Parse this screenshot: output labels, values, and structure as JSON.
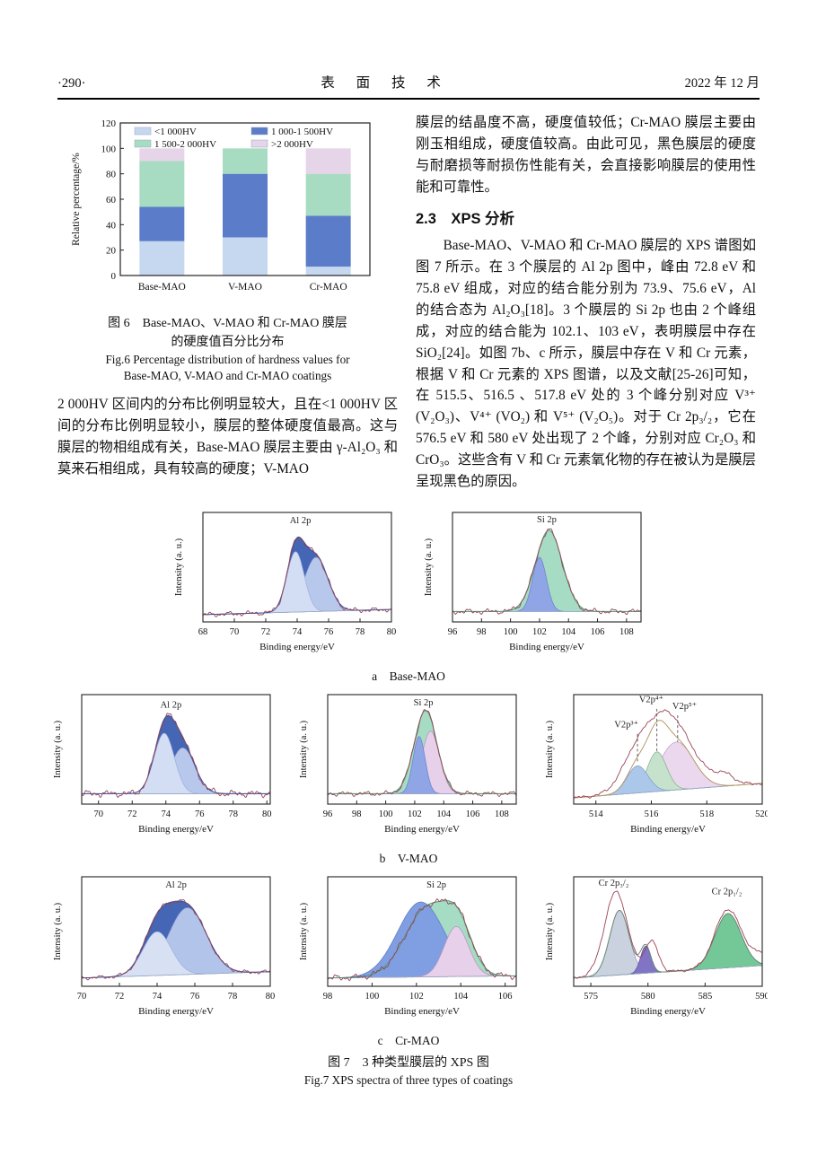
{
  "header": {
    "page_number": "·290·",
    "journal": "表 面 技 术",
    "date": "2022 年 12 月"
  },
  "left_column": {
    "paragraph": "2 000HV 区间内的分布比例明显较大，且在<1 000HV 区间的分布比例明显较小，膜层的整体硬度值最高。这与膜层的物相组成有关，Base-MAO 膜层主要由 γ-Al₂O₃ 和莫来石相组成，具有较高的硬度；V-MAO"
  },
  "right_column": {
    "paragraph1": "膜层的结晶度不高，硬度值较低；Cr-MAO 膜层主要由刚玉相组成，硬度值较高。由此可见，黑色膜层的硬度与耐磨损等耐损伤性能有关，会直接影响膜层的使用性能和可靠性。",
    "heading": "2.3　XPS 分析",
    "paragraph2": "Base-MAO、V-MAO 和 Cr-MAO 膜层的 XPS 谱图如图 7 所示。在 3 个膜层的 Al 2p 图中，峰由 72.8 eV 和 75.8 eV 组成，对应的结合能分别为 73.9、75.6 eV，Al 的结合态为 Al₂O₃[18]。3 个膜层的 Si 2p 也由 2 个峰组成，对应的结合能为 102.1、103 eV，表明膜层中存在 SiO₂[24]。如图 7b、c 所示，膜层中存在 V 和 Cr 元素，根据 V 和 Cr 元素的 XPS 图谱，以及文献[25-26]可知，在 515.5、516.5 、517.8 eV 处的 3 个峰分别对应 V³⁺ (V₂O₃)、V⁴⁺ (VO₂) 和 V⁵⁺ (V₂O₅)。对于 Cr 2p₃/₂，它在 576.5 eV 和 580 eV 处出现了 2 个峰，分别对应 Cr₂O₃ 和 CrO₃。这些含有 V 和 Cr 元素氧化物的存在被认为是膜层呈现黑色的原因。"
  },
  "figure6": {
    "caption_zh1": "图 6　Base-MAO、V-MAO 和 Cr-MAO 膜层",
    "caption_zh2": "的硬度值百分比分布",
    "caption_en1": "Fig.6 Percentage distribution of hardness values for",
    "caption_en2": "Base-MAO, V-MAO and Cr-MAO coatings"
  },
  "figure7": {
    "group_a": "a　Base-MAO",
    "group_b": "b　V-MAO",
    "group_c": "c　Cr-MAO",
    "caption_zh": "图 7　3 种类型膜层的 XPS 图",
    "caption_en": "Fig.7 XPS spectra of three types of coatings"
  },
  "chart_data": {
    "bar_chart": {
      "type": "bar",
      "stacked": true,
      "ylabel": "Relative percentage/%",
      "ylim": [
        0,
        120
      ],
      "yticks": [
        0,
        20,
        40,
        60,
        80,
        100,
        120
      ],
      "categories": [
        "Base-MAO",
        "V-MAO",
        "Cr-MAO"
      ],
      "series": [
        {
          "name": "<1 000HV",
          "color": "#c6d8f0",
          "values": [
            27,
            30,
            7
          ]
        },
        {
          "name": "1 000-1 500HV",
          "color": "#5b7cc8",
          "values": [
            27,
            50,
            40
          ]
        },
        {
          "name": "1 500-2 000HV",
          "color": "#a8dcc2",
          "values": [
            36,
            20,
            33
          ]
        },
        {
          "name": ">2 000HV",
          "color": "#e6d4e8",
          "values": [
            10,
            0,
            20
          ]
        }
      ],
      "legend_position": "top-inside"
    },
    "spectra": [
      {
        "id": "a-al2p",
        "group": "Base-MAO",
        "type": "line",
        "x_label": "Binding energy/eV",
        "y_label": "Intensity (a. u.)",
        "x_range": [
          68,
          80
        ],
        "ticks": [
          68,
          70,
          72,
          74,
          76,
          78,
          80
        ],
        "baseline": [
          0.07,
          0.12
        ],
        "noise": 0.02,
        "envelope_fill": "#4466b4",
        "envelope_stroke": "#31519e",
        "raw_color": "#9a4455",
        "envelope_peaks": [
          {
            "c": 73.9,
            "s": 0.55,
            "a": 0.58
          },
          {
            "c": 75.2,
            "s": 0.75,
            "a": 0.52
          }
        ],
        "components": [
          {
            "c": 75.2,
            "s": 0.75,
            "a": 0.52,
            "color": "#b7c8ec",
            "line": "#8a9cd0"
          },
          {
            "c": 73.9,
            "s": 0.55,
            "a": 0.58,
            "color": "#d3def4",
            "line": "#9dafdd"
          }
        ],
        "annotations": [
          {
            "text": "Al 2p",
            "x": 74.2,
            "ty": 0.1
          }
        ]
      },
      {
        "id": "a-si2p",
        "group": "Base-MAO",
        "type": "line",
        "x_label": "Binding energy/eV",
        "y_label": "Intensity (a. u.)",
        "x_range": [
          96,
          109
        ],
        "ticks": [
          96,
          98,
          100,
          102,
          104,
          106,
          108
        ],
        "baseline": [
          0.1,
          0.1
        ],
        "noise": 0.022,
        "envelope_fill": "#a5dcc3",
        "envelope_stroke": "#4a9a74",
        "raw_color": "#9a4455",
        "envelope_peaks": [
          {
            "c": 102.65,
            "s": 0.92,
            "a": 0.78
          }
        ],
        "components": [
          {
            "c": 102.0,
            "s": 0.48,
            "a": 0.52,
            "color": "#8fa5e5",
            "line": "#6a7fc9"
          }
        ],
        "annotations": [
          {
            "text": "Si 2p",
            "x": 102.5,
            "ty": 0.09
          }
        ]
      },
      {
        "id": "b-al2p",
        "group": "V-MAO",
        "type": "line",
        "x_label": "Binding energy/eV",
        "y_label": "Intensity (a. u.)",
        "x_range": [
          69,
          80.2
        ],
        "ticks": [
          70,
          72,
          74,
          76,
          78,
          80
        ],
        "baseline": [
          0.1,
          0.1
        ],
        "noise": 0.028,
        "envelope_fill": "#4466b4",
        "envelope_stroke": "#31519e",
        "raw_color": "#9a4455",
        "envelope_peaks": [
          {
            "c": 73.9,
            "s": 0.6,
            "a": 0.58
          },
          {
            "c": 75.0,
            "s": 0.72,
            "a": 0.44
          }
        ],
        "components": [
          {
            "c": 75.0,
            "s": 0.72,
            "a": 0.44,
            "color": "#b7c8ec",
            "line": "#8a9cd0"
          },
          {
            "c": 73.9,
            "s": 0.6,
            "a": 0.58,
            "color": "#d3def4",
            "line": "#9dafdd"
          }
        ],
        "annotations": [
          {
            "text": "Al 2p",
            "x": 74.3,
            "ty": 0.12
          }
        ]
      },
      {
        "id": "b-si2p",
        "group": "V-MAO",
        "type": "line",
        "x_label": "Binding energy/eV",
        "y_label": "Intensity (a. u.)",
        "x_range": [
          96,
          109
        ],
        "ticks": [
          96,
          98,
          100,
          102,
          104,
          106,
          108
        ],
        "baseline": [
          0.1,
          0.1
        ],
        "noise": 0.02,
        "envelope_fill": "#a5dcc3",
        "envelope_stroke": "#4a9a74",
        "raw_color": "#9a4455",
        "envelope_peaks": [
          {
            "c": 102.75,
            "s": 0.78,
            "a": 0.8
          }
        ],
        "components": [
          {
            "c": 103.1,
            "s": 0.62,
            "a": 0.6,
            "color": "#e6d0ea",
            "line": "#b893c0"
          },
          {
            "c": 102.3,
            "s": 0.42,
            "a": 0.55,
            "color": "#8fa5e5",
            "line": "#6a7fc9"
          }
        ],
        "annotations": [
          {
            "text": "Si 2p",
            "x": 102.6,
            "ty": 0.1
          }
        ]
      },
      {
        "id": "b-v2p",
        "group": "V-MAO",
        "type": "line",
        "x_label": "Binding energy/eV",
        "y_label": "Intensity (a. u.)",
        "x_range": [
          513.2,
          520
        ],
        "ticks": [
          514,
          516,
          518,
          520
        ],
        "baseline": [
          0.06,
          0.2
        ],
        "noise": 0.013,
        "envelope_fill": null,
        "envelope_stroke": "#b89a68",
        "raw_color": "#9a4455",
        "envelope_peaks": [
          {
            "c": 516.9,
            "s": 0.62,
            "a": 0.46
          },
          {
            "c": 516.2,
            "s": 0.35,
            "a": 0.38
          },
          {
            "c": 515.5,
            "s": 0.38,
            "a": 0.26
          }
        ],
        "components": [
          {
            "c": 516.9,
            "s": 0.62,
            "a": 0.46,
            "color": "#ecd8ee",
            "line": "#c09cc8"
          },
          {
            "c": 516.2,
            "s": 0.35,
            "a": 0.38,
            "color": "#c6e2cc",
            "line": "#7fae8a"
          },
          {
            "c": 515.5,
            "s": 0.38,
            "a": 0.26,
            "color": "#abc8ea",
            "line": "#7b9cc8"
          }
        ],
        "raw_peaks": [
          {
            "c": 516.35,
            "s": 0.75,
            "a": 0.58
          },
          {
            "c": 515.35,
            "s": 0.5,
            "a": 0.2
          },
          {
            "c": 517.1,
            "s": 0.8,
            "a": 0.24
          },
          {
            "c": 518.65,
            "s": 0.35,
            "a": 0.09
          }
        ],
        "peak_positions_eV": {
          "V3+": 515.5,
          "V4+": 516.5,
          "V5+": 517.8
        },
        "annotations": [
          {
            "text": "V2p³⁺",
            "x": 515.1,
            "ty": 0.3,
            "line": {
              "x": 515.5,
              "y1": 0.36,
              "y2": 0.62
            }
          },
          {
            "text": "V2p⁴⁺",
            "x": 516.0,
            "ty": 0.07,
            "line": {
              "x": 516.2,
              "y1": 0.13,
              "y2": 0.52
            }
          },
          {
            "text": "V2p⁵⁺",
            "x": 517.2,
            "ty": 0.13,
            "line": {
              "x": 516.95,
              "y1": 0.19,
              "y2": 0.43
            }
          }
        ]
      },
      {
        "id": "c-al2p",
        "group": "Cr-MAO",
        "type": "line",
        "x_label": "Binding energy/eV",
        "y_label": "Intensity (a. u.)",
        "x_range": [
          70,
          80
        ],
        "ticks": [
          70,
          72,
          74,
          76,
          78,
          80
        ],
        "baseline": [
          0.08,
          0.14
        ],
        "noise": 0.016,
        "envelope_fill": "#4466b4",
        "envelope_stroke": "#31519e",
        "raw_color": "#9a4455",
        "envelope_peaks": [
          {
            "c": 74.0,
            "s": 0.75,
            "a": 0.42
          },
          {
            "c": 75.6,
            "s": 1.0,
            "a": 0.64
          }
        ],
        "components": [
          {
            "c": 75.6,
            "s": 1.0,
            "a": 0.64,
            "color": "#b2c4ea",
            "line": "#8a9cd0"
          },
          {
            "c": 74.0,
            "s": 0.75,
            "a": 0.42,
            "color": "#d8e1f4",
            "line": "#9dafdd"
          }
        ],
        "annotations": [
          {
            "text": "Al 2p",
            "x": 75.0,
            "ty": 0.1
          }
        ]
      },
      {
        "id": "c-si2p",
        "group": "Cr-MAO",
        "type": "line",
        "x_label": "Binding energy/eV",
        "y_label": "Intensity (a. u.)",
        "x_range": [
          98,
          106.5
        ],
        "ticks": [
          98,
          100,
          102,
          104,
          106
        ],
        "baseline": [
          0.08,
          0.1
        ],
        "noise": 0.026,
        "envelope_fill": "#a5dcc3",
        "envelope_stroke": "#4a9a74",
        "raw_color": "#9a4455",
        "envelope_peaks": [
          {
            "c": 102.5,
            "s": 1.0,
            "a": 0.66
          },
          {
            "c": 103.9,
            "s": 0.62,
            "a": 0.4
          }
        ],
        "components": [
          {
            "c": 102.2,
            "s": 1.05,
            "a": 0.72,
            "color": "#7f9fe2",
            "line": "#5a78c0"
          },
          {
            "c": 103.8,
            "s": 0.55,
            "a": 0.48,
            "color": "#e6d0ea",
            "line": "#b893c0"
          }
        ],
        "annotations": [
          {
            "text": "Si 2p",
            "x": 102.9,
            "ty": 0.1
          }
        ]
      },
      {
        "id": "c-cr2p",
        "group": "Cr-MAO",
        "type": "line",
        "x_label": "Binding energy/eV",
        "y_label": "Intensity (a. u.)",
        "x_range": [
          573.5,
          590
        ],
        "ticks": [
          575,
          580,
          585,
          590
        ],
        "baseline": [
          0.08,
          0.2
        ],
        "noise": 0.011,
        "envelope_fill": null,
        "envelope_stroke": "#6a8a78",
        "raw_color": "#9a4455",
        "envelope_peaks": [
          {
            "c": 577.5,
            "s": 0.85,
            "a": 0.62
          },
          {
            "c": 579.8,
            "s": 0.45,
            "a": 0.26
          },
          {
            "c": 587.0,
            "s": 1.15,
            "a": 0.52
          }
        ],
        "components": [
          {
            "c": 577.5,
            "s": 0.85,
            "a": 0.62,
            "color": "#c9d2de",
            "line": "#8a98ac"
          },
          {
            "c": 579.8,
            "s": 0.45,
            "a": 0.26,
            "color": "#8274c4",
            "line": "#5c4fa0"
          },
          {
            "c": 587.0,
            "s": 1.15,
            "a": 0.52,
            "color": "#74c898",
            "line": "#4a9a6e"
          }
        ],
        "raw_peaks": [
          {
            "c": 577.2,
            "s": 1.0,
            "a": 0.8
          },
          {
            "c": 580.3,
            "s": 0.6,
            "a": 0.3
          },
          {
            "c": 587.0,
            "s": 1.15,
            "a": 0.56
          },
          {
            "c": 589.8,
            "s": 0.9,
            "a": 0.1
          }
        ],
        "peak_positions_eV": {
          "Cr2O3": 576.5,
          "CrO3": 580
        },
        "annotations": [
          {
            "text": "Cr 2p₃/₂",
            "x": 577.0,
            "ty": 0.08
          },
          {
            "text": "Cr 2p₁/₂",
            "x": 586.9,
            "ty": 0.16
          }
        ]
      }
    ]
  }
}
